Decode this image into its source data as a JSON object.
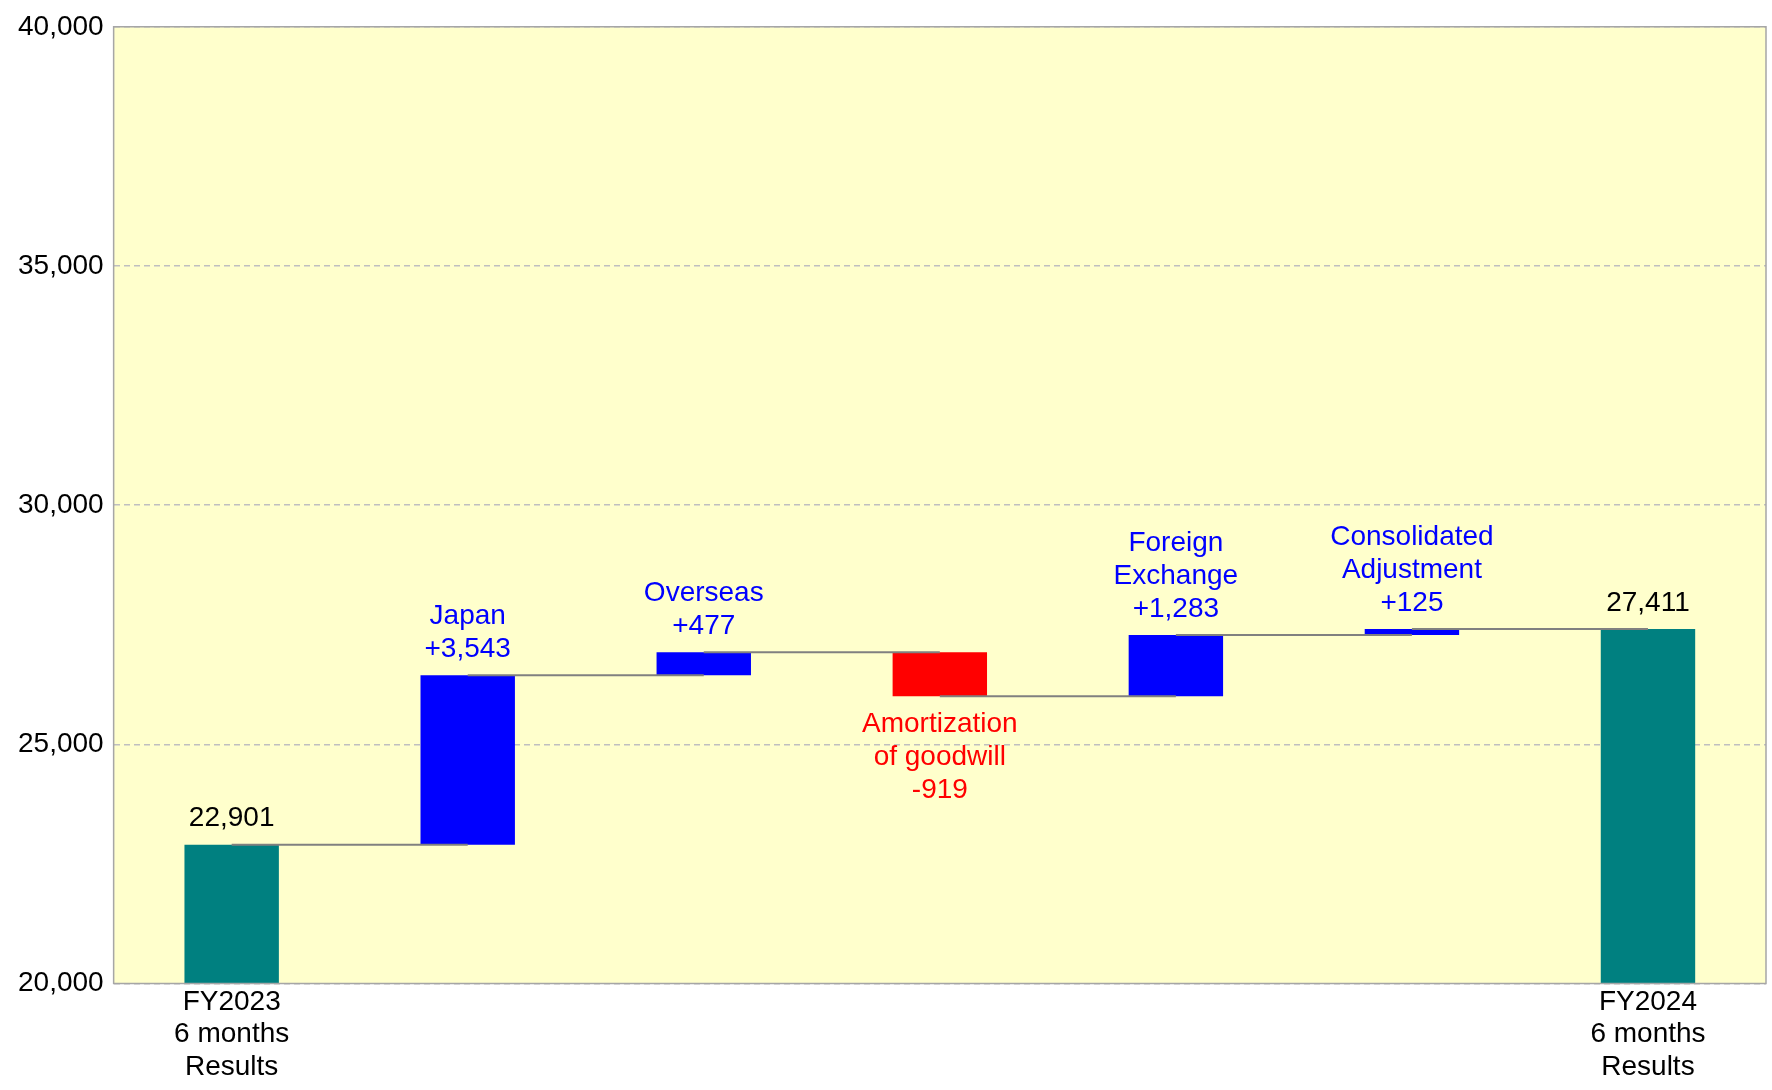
{
  "chart_data": {
    "type": "bar",
    "categories": [
      "FY2023\n6 months\nResults",
      null,
      null,
      null,
      null,
      null,
      "FY2024\n6 months\nResults"
    ],
    "values": [
      22901,
      3543,
      477,
      -919,
      1283,
      125,
      27411
    ],
    "base": [
      null,
      22901,
      26444,
      26921,
      26002,
      27285,
      null
    ],
    "colors": [
      "#008080",
      "#0000ff",
      "#0000ff",
      "#ff0000",
      "#0000ff",
      "#0000ff",
      "#008080"
    ],
    "value_labels": [
      "22,901",
      "Japan\n+3,543",
      "Overseas\n+477",
      "Amortization\nof goodwill\n-919",
      "Foreign\nExchange\n+1,283",
      "Consolidated\nAdjustment\n+125",
      "27,411"
    ],
    "ylim": [
      20000,
      40000
    ],
    "yticks": [
      {
        "value": 20000,
        "label": "20,000"
      },
      {
        "value": 25000,
        "label": "25,000"
      },
      {
        "value": 30000,
        "label": "30,000"
      },
      {
        "value": 35000,
        "label": "35,000"
      },
      {
        "value": 40000,
        "label": "40,000"
      }
    ],
    "grid": "y",
    "legend": false
  }
}
